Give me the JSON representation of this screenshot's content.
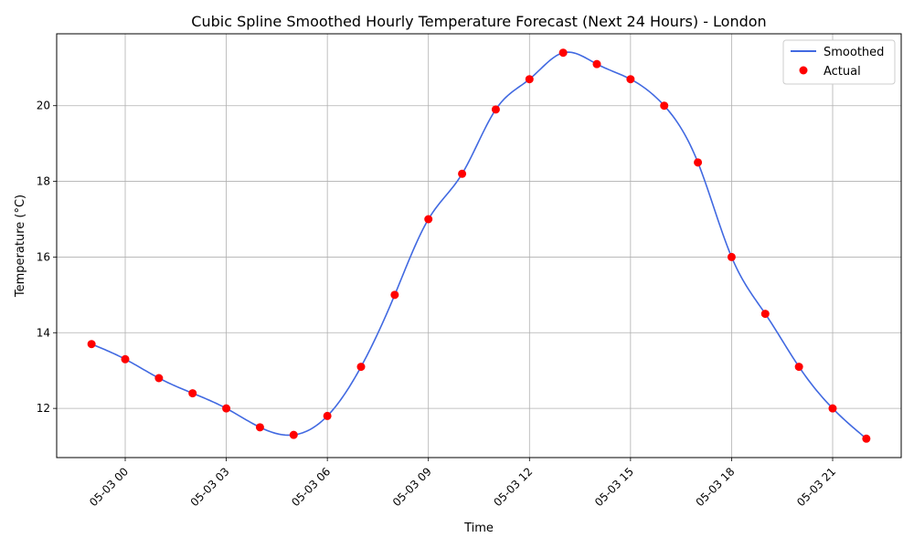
{
  "chart_data": {
    "type": "line",
    "title": "Cubic Spline Smoothed Hourly Temperature Forecast (Next 24 Hours) - London",
    "xlabel": "Time",
    "ylabel": "Temperature (°C)",
    "x": [
      "05-02 23:00",
      "05-03 00:00",
      "05-03 01:00",
      "05-03 02:00",
      "05-03 03:00",
      "05-03 04:00",
      "05-03 05:00",
      "05-03 06:00",
      "05-03 07:00",
      "05-03 08:00",
      "05-03 09:00",
      "05-03 10:00",
      "05-03 11:00",
      "05-03 12:00",
      "05-03 13:00",
      "05-03 14:00",
      "05-03 15:00",
      "05-03 16:00",
      "05-03 17:00",
      "05-03 18:00",
      "05-03 19:00",
      "05-03 20:00",
      "05-03 21:00",
      "05-03 22:00"
    ],
    "series": [
      {
        "name": "Smoothed",
        "type": "line",
        "color": "#4169e1",
        "values": [
          13.7,
          13.3,
          12.8,
          12.4,
          12.0,
          11.5,
          11.3,
          11.8,
          13.1,
          15.0,
          17.0,
          18.2,
          19.9,
          20.7,
          21.4,
          21.1,
          20.7,
          20.0,
          18.5,
          16.0,
          14.5,
          13.1,
          12.0,
          11.2
        ]
      },
      {
        "name": "Actual",
        "type": "scatter",
        "color": "#ff0000",
        "values": [
          13.7,
          13.3,
          12.8,
          12.4,
          12.0,
          11.5,
          11.3,
          11.8,
          13.1,
          15.0,
          17.0,
          18.2,
          19.9,
          20.7,
          21.4,
          21.1,
          20.7,
          20.0,
          18.5,
          16.0,
          14.5,
          13.1,
          12.0,
          11.2
        ]
      }
    ],
    "x_ticks": [
      "05-03 00",
      "05-03 03",
      "05-03 06",
      "05-03 09",
      "05-03 12",
      "05-03 15",
      "05-03 18",
      "05-03 21"
    ],
    "y_ticks": [
      "12",
      "14",
      "16",
      "18",
      "20"
    ],
    "ylim": [
      10.7,
      21.9
    ],
    "grid": true,
    "legend_position": "top-right"
  }
}
